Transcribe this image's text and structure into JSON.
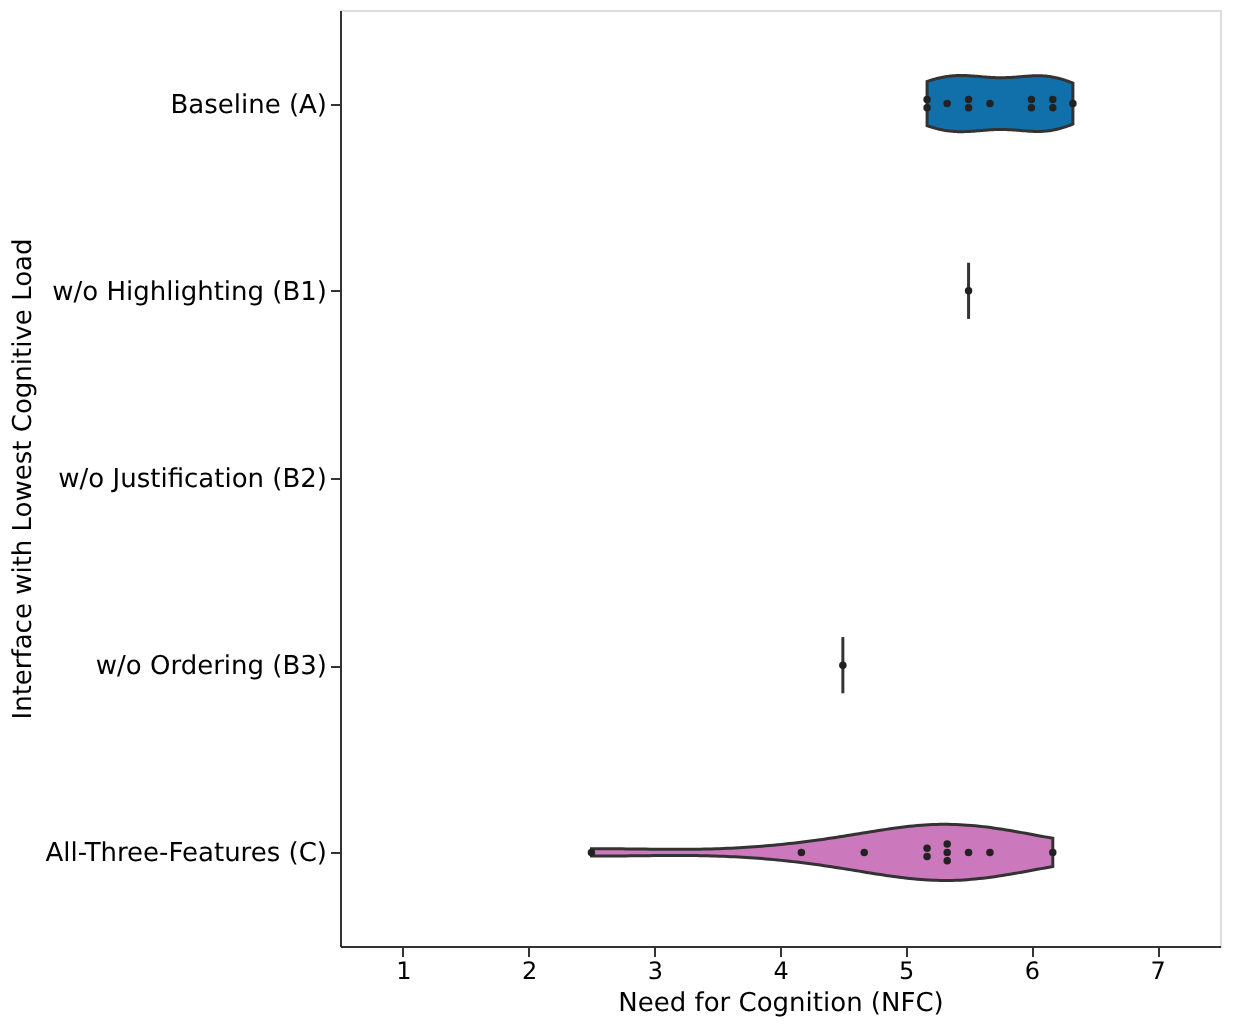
{
  "chart_data": {
    "type": "scatter",
    "orientation": "horizontal",
    "xlabel": "Need for Cognition (NFC)",
    "ylabel": "Interface with Lowest Cognitive Load",
    "categories": [
      "Baseline (A)",
      "w/o Highlighting (B1)",
      "w/o Justification (B2)",
      "w/o Ordering (B3)",
      "All-Three-Features (C)"
    ],
    "series": [
      {
        "color": "#222222",
        "x": [
          "Baseline (A)",
          "Baseline (A)",
          "Baseline (A)",
          "Baseline (A)",
          "Baseline (A)",
          "Baseline (A)",
          "Baseline (A)",
          "Baseline (A)",
          "Baseline (A)",
          "Baseline (A)",
          "Baseline (A)"
        ],
        "values": [
          5.17,
          5.17,
          5.33,
          5.5,
          5.5,
          5.67,
          6.0,
          6.0,
          6.17,
          6.17,
          6.33
        ]
      },
      {
        "color": "#222222",
        "x": [
          "w/o Highlighting (B1)"
        ],
        "values": [
          5.5
        ]
      },
      {
        "color": "#222222",
        "x": [
          "w/o Ordering (B3)"
        ],
        "values": [
          4.5
        ]
      },
      {
        "color": "#222222",
        "x": [
          "All-Three-Features (C)",
          "All-Three-Features (C)",
          "All-Three-Features (C)",
          "All-Three-Features (C)",
          "All-Three-Features (C)",
          "All-Three-Features (C)",
          "All-Three-Features (C)",
          "All-Three-Features (C)",
          "All-Three-Features (C)",
          "All-Three-Features (C)",
          "All-Three-Features (C)"
        ],
        "values": [
          2.5,
          4.17,
          4.67,
          5.17,
          5.17,
          5.33,
          5.33,
          5.33,
          5.5,
          5.67,
          6.17
        ]
      }
    ],
    "xlim": [
      0.5,
      7.5
    ],
    "xticks": [
      1,
      2,
      3,
      4,
      5,
      6,
      7
    ],
    "grid": false,
    "marker": "circle"
  }
}
